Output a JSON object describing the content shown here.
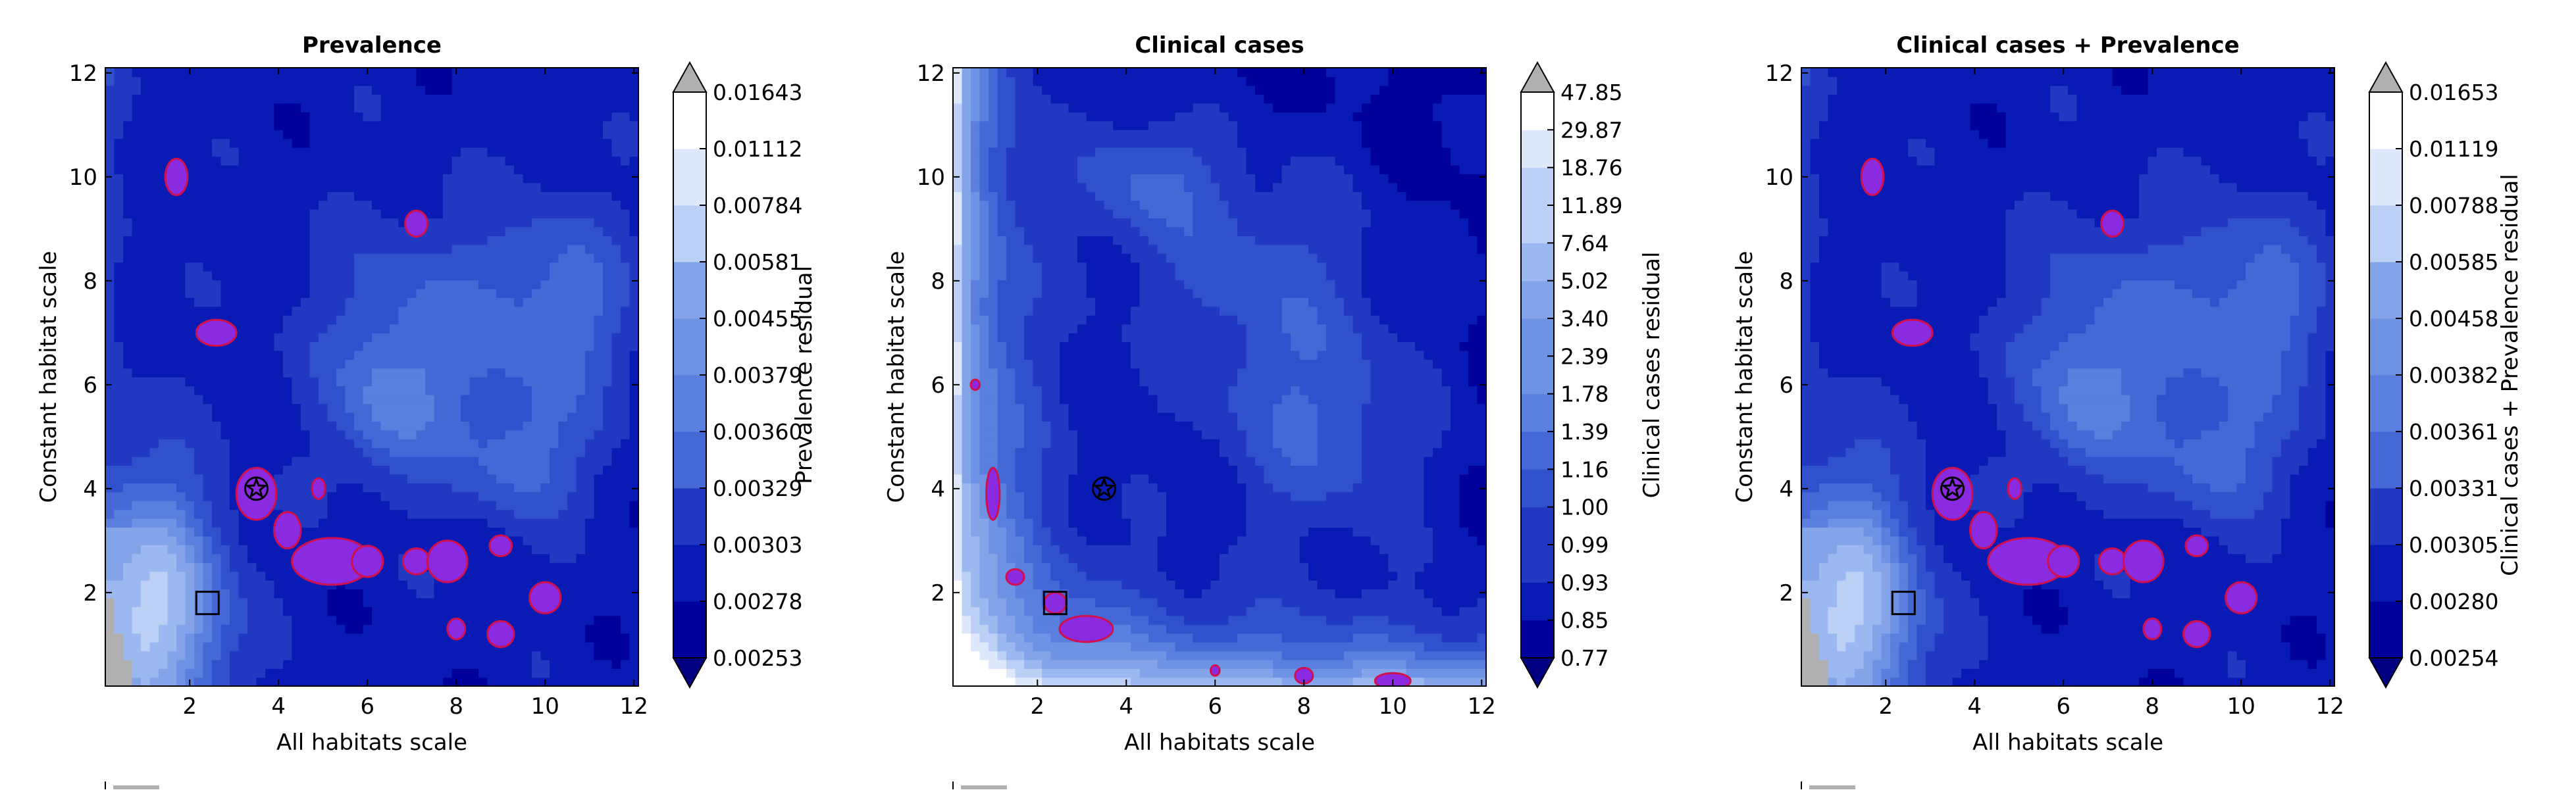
{
  "palette": {
    "below_min": "#000080",
    "above_max": "#b0b0b0",
    "levels": [
      "#00009a",
      "#0a1ab4",
      "#2038c2",
      "#3050cc",
      "#4668d6",
      "#5a7fde",
      "#6e92e4",
      "#84a4ea",
      "#9cb8f0",
      "#bcd0f6",
      "#dde8fb",
      "#ffffff"
    ],
    "hotspot_fill": "#8a2be2",
    "hotspot_edge": "#d0104c",
    "frame": "#000000"
  },
  "chart_data": [
    {
      "type": "heatmap",
      "title": "Prevalence",
      "xlabel": "All habitats scale",
      "ylabel": "Constant habitat scale",
      "xlim": [
        0.1,
        12.1
      ],
      "ylim": [
        0.2,
        12.1
      ],
      "xticks": [
        2,
        4,
        6,
        8,
        10,
        12
      ],
      "yticks": [
        2,
        4,
        6,
        8,
        10,
        12
      ],
      "colorbar_label": "Prevalence residual",
      "colorbar_levels": [
        "0.00253",
        "0.00278",
        "0.00303",
        "0.00329",
        "0.00360",
        "0.00379",
        "0.00455",
        "0.00581",
        "0.00784",
        "0.01112",
        "0.01643"
      ],
      "colorbar_extend": "both",
      "star_marker": [
        3.5,
        4.0
      ],
      "square_marker": [
        2.4,
        1.8
      ],
      "bottom_left_gray": true,
      "hotspots": [
        [
          1.7,
          10.0,
          0.25,
          0.35
        ],
        [
          3.5,
          3.9,
          0.45,
          0.5
        ],
        [
          4.2,
          3.2,
          0.3,
          0.35
        ],
        [
          5.2,
          2.6,
          0.9,
          0.45
        ],
        [
          6.0,
          2.6,
          0.35,
          0.3
        ],
        [
          7.1,
          2.6,
          0.3,
          0.25
        ],
        [
          7.8,
          2.6,
          0.45,
          0.4
        ],
        [
          9.0,
          2.9,
          0.25,
          0.2
        ],
        [
          10.0,
          1.9,
          0.35,
          0.3
        ],
        [
          7.1,
          9.1,
          0.25,
          0.25
        ],
        [
          2.6,
          7.0,
          0.45,
          0.25
        ],
        [
          8.0,
          1.3,
          0.2,
          0.2
        ],
        [
          9.0,
          1.2,
          0.3,
          0.25
        ],
        [
          4.9,
          4.0,
          0.15,
          0.2
        ]
      ],
      "plateaus": [
        [
          7.5,
          7.0,
          2.6,
          2.2
        ],
        [
          6.5,
          5.5,
          1.2,
          1.5
        ],
        [
          10.5,
          7.5,
          1.5,
          2.0
        ],
        [
          9.5,
          4.5,
          1.4,
          1.2
        ]
      ]
    },
    {
      "type": "heatmap",
      "title": "Clinical cases",
      "xlabel": "All habitats scale",
      "ylabel": "Constant habitat scale",
      "xlim": [
        0.1,
        12.1
      ],
      "ylim": [
        0.2,
        12.1
      ],
      "xticks": [
        2,
        4,
        6,
        8,
        10,
        12
      ],
      "yticks": [
        2,
        4,
        6,
        8,
        10,
        12
      ],
      "colorbar_label": "Clinical cases residual",
      "colorbar_levels": [
        "0.77",
        "0.85",
        "0.93",
        "0.99",
        "1.00",
        "1.16",
        "1.39",
        "1.78",
        "2.39",
        "3.40",
        "5.02",
        "7.64",
        "11.89",
        "18.76",
        "29.87",
        "47.85"
      ],
      "colorbar_extend": "both",
      "star_marker": [
        3.5,
        4.0
      ],
      "square_marker": [
        2.4,
        1.8
      ],
      "bottom_left_gray": false,
      "hotspots": [
        [
          1.0,
          3.9,
          0.15,
          0.5
        ],
        [
          1.5,
          2.3,
          0.2,
          0.15
        ],
        [
          2.4,
          1.8,
          0.25,
          0.2
        ],
        [
          3.1,
          1.3,
          0.6,
          0.25
        ],
        [
          0.6,
          6.0,
          0.1,
          0.1
        ],
        [
          8.0,
          0.4,
          0.2,
          0.15
        ],
        [
          10.0,
          0.3,
          0.4,
          0.15
        ],
        [
          6.0,
          0.5,
          0.1,
          0.1
        ]
      ],
      "plateaus": [
        [
          7.0,
          8.0,
          3.0,
          2.5
        ],
        [
          8.5,
          5.0,
          2.5,
          2.0
        ],
        [
          4.5,
          10.0,
          1.5,
          1.2
        ]
      ]
    },
    {
      "type": "heatmap",
      "title": "Clinical cases + Prevalence",
      "xlabel": "All habitats scale",
      "ylabel": "Constant habitat scale",
      "xlim": [
        0.1,
        12.1
      ],
      "ylim": [
        0.2,
        12.1
      ],
      "xticks": [
        2,
        4,
        6,
        8,
        10,
        12
      ],
      "yticks": [
        2,
        4,
        6,
        8,
        10,
        12
      ],
      "colorbar_label": "Clinical cases + Prevalence residual",
      "colorbar_levels": [
        "0.00254",
        "0.00280",
        "0.00305",
        "0.00331",
        "0.00361",
        "0.00382",
        "0.00458",
        "0.00585",
        "0.00788",
        "0.01119",
        "0.01653"
      ],
      "colorbar_extend": "both",
      "star_marker": [
        3.5,
        4.0
      ],
      "square_marker": [
        2.4,
        1.8
      ],
      "bottom_left_gray": true,
      "hotspots": [
        [
          1.7,
          10.0,
          0.25,
          0.35
        ],
        [
          3.5,
          3.9,
          0.45,
          0.5
        ],
        [
          4.2,
          3.2,
          0.3,
          0.35
        ],
        [
          5.2,
          2.6,
          0.9,
          0.45
        ],
        [
          6.0,
          2.6,
          0.35,
          0.3
        ],
        [
          7.1,
          2.6,
          0.3,
          0.25
        ],
        [
          7.8,
          2.6,
          0.45,
          0.4
        ],
        [
          9.0,
          2.9,
          0.25,
          0.2
        ],
        [
          10.0,
          1.9,
          0.35,
          0.3
        ],
        [
          7.1,
          9.1,
          0.25,
          0.25
        ],
        [
          2.6,
          7.0,
          0.45,
          0.25
        ],
        [
          8.0,
          1.3,
          0.2,
          0.2
        ],
        [
          9.0,
          1.2,
          0.3,
          0.25
        ],
        [
          4.9,
          4.0,
          0.15,
          0.2
        ]
      ],
      "plateaus": [
        [
          7.5,
          7.0,
          2.6,
          2.2
        ],
        [
          6.5,
          5.5,
          1.2,
          1.5
        ],
        [
          10.5,
          7.5,
          1.5,
          2.0
        ],
        [
          9.5,
          4.5,
          1.4,
          1.2
        ]
      ]
    }
  ]
}
